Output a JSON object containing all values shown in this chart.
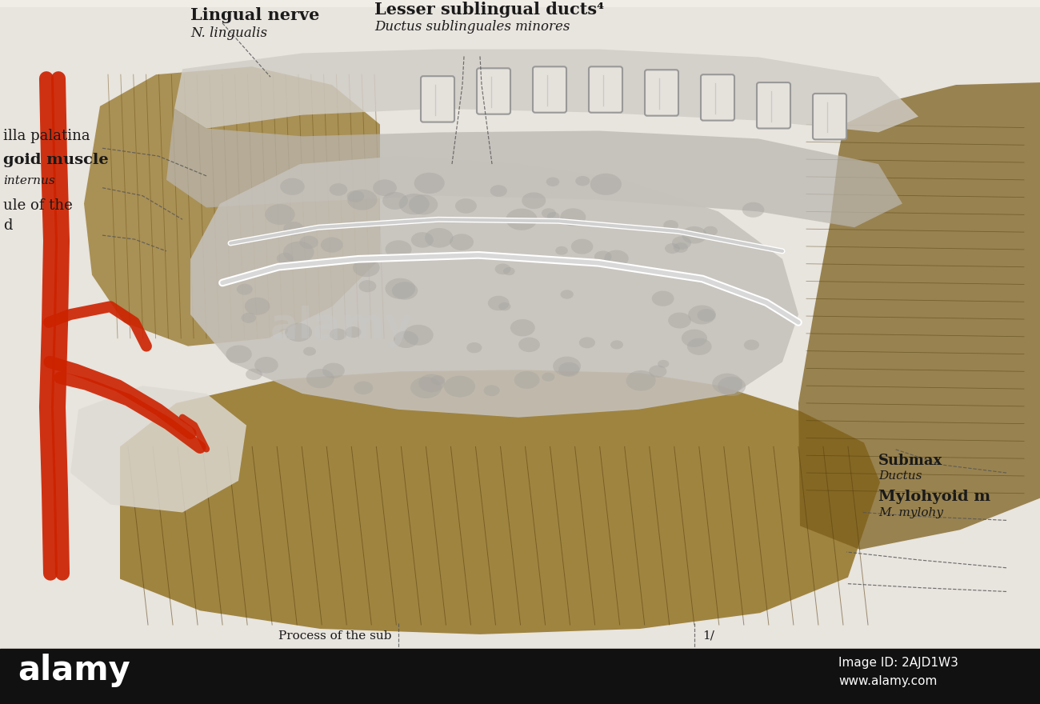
{
  "background_color": "#e8e4df",
  "black_bar_color": "#000000",
  "title_text": "Lingual nerve",
  "title_sub": "N. lingualis",
  "label2_title": "Lesser sublingual ducts⁴",
  "label2_sub": "Ductus sublinguales minores",
  "label_left1": "illa palatina",
  "label_left2": "goid muscle",
  "label_left3": "internus",
  "label_left4": "ule of the",
  "label_left5": "d",
  "label_right1": "Submax",
  "label_right2": "Ductus",
  "label_right3": "Mylohyoid m",
  "label_right4": "M. mylohy",
  "label_bottom1": "Process of the sub",
  "label_bottom2": "1/",
  "alamy_text": "alamy",
  "alamy_id": "Image ID: 2AJD1W3",
  "alamy_url": "www.alamy.com",
  "text_color": "#1a1a1a"
}
